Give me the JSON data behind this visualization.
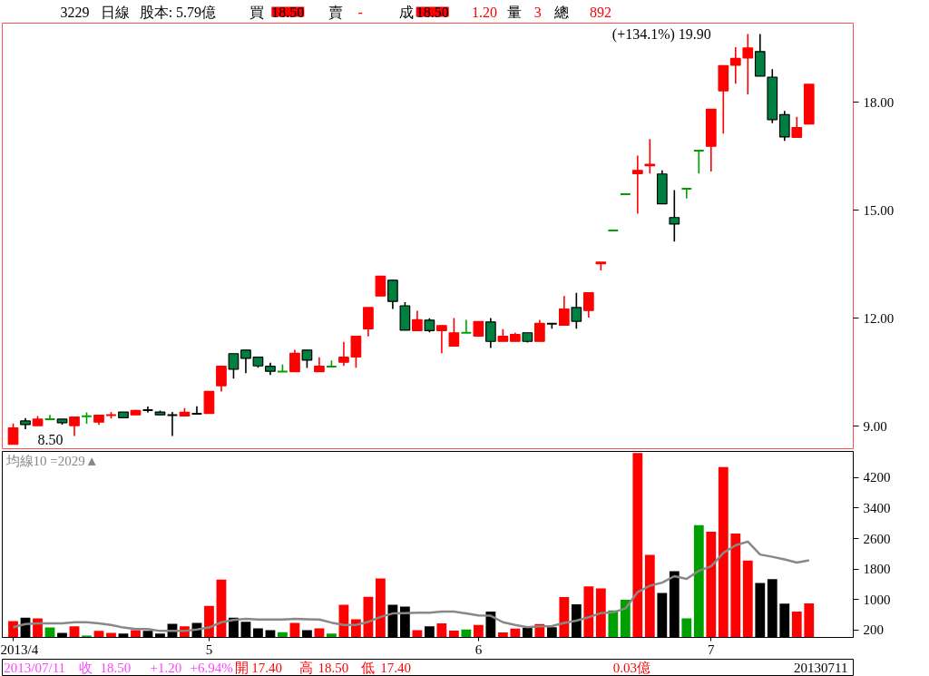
{
  "chart_data": [
    {
      "type": "candlestick",
      "tick_labels": "y",
      "categories": [
        null,
        null,
        null,
        null,
        null,
        null,
        null,
        null,
        null,
        null,
        null,
        null,
        null,
        null,
        null,
        null,
        null,
        null,
        null,
        null,
        null,
        null,
        null,
        null,
        null,
        null,
        null,
        null,
        null,
        null,
        null,
        null,
        null,
        null,
        null,
        null,
        null,
        null,
        null,
        null,
        null,
        null,
        null,
        null,
        null,
        null,
        null,
        null,
        null,
        null,
        null,
        null,
        null,
        null,
        null,
        null,
        null,
        null,
        null,
        null,
        null,
        null,
        null,
        null,
        null,
        null
      ],
      "ohlc": [
        [
          8.5,
          9.08,
          8.5,
          8.96
        ],
        [
          9.15,
          9.23,
          8.92,
          9.05
        ],
        [
          9.02,
          9.29,
          9.02,
          9.2
        ],
        [
          9.2,
          9.32,
          9.2,
          9.2
        ],
        [
          9.2,
          9.2,
          9.05,
          9.1
        ],
        [
          9.02,
          9.26,
          8.73,
          9.26
        ],
        [
          9.28,
          9.39,
          9.07,
          9.28
        ],
        [
          9.12,
          9.31,
          9.04,
          9.31
        ],
        [
          9.31,
          9.4,
          9.22,
          9.31
        ],
        [
          9.4,
          9.4,
          9.24,
          9.24
        ],
        [
          9.32,
          9.46,
          9.32,
          9.44
        ],
        [
          9.45,
          9.55,
          9.38,
          9.45
        ],
        [
          9.4,
          9.44,
          9.32,
          9.32
        ],
        [
          9.31,
          9.4,
          8.73,
          9.31
        ],
        [
          9.29,
          9.51,
          9.29,
          9.39
        ],
        [
          9.35,
          9.56,
          9.35,
          9.35
        ],
        [
          9.36,
          9.97,
          9.36,
          9.97
        ],
        [
          10.13,
          10.67,
          9.97,
          10.67
        ],
        [
          11.02,
          11.02,
          10.33,
          10.59
        ],
        [
          11.12,
          11.12,
          10.48,
          10.89
        ],
        [
          10.92,
          10.92,
          10.63,
          10.68
        ],
        [
          10.67,
          10.77,
          10.43,
          10.53
        ],
        [
          10.52,
          10.72,
          10.52,
          10.52
        ],
        [
          10.52,
          11.13,
          10.52,
          11.03
        ],
        [
          11.12,
          11.12,
          10.62,
          10.84
        ],
        [
          10.52,
          10.92,
          10.52,
          10.67
        ],
        [
          10.66,
          10.83,
          10.66,
          10.66
        ],
        [
          10.78,
          11.35,
          10.68,
          10.92
        ],
        [
          10.93,
          11.5,
          10.63,
          11.5
        ],
        [
          11.71,
          12.3,
          11.5,
          12.3
        ],
        [
          12.62,
          13.17,
          12.62,
          13.17
        ],
        [
          13.06,
          13.06,
          12.26,
          12.47
        ],
        [
          12.35,
          12.45,
          11.67,
          11.67
        ],
        [
          11.66,
          12.21,
          11.66,
          11.96
        ],
        [
          11.95,
          12.0,
          11.61,
          11.66
        ],
        [
          11.66,
          11.8,
          11.03,
          11.8
        ],
        [
          11.23,
          12.01,
          11.23,
          11.6
        ],
        [
          11.6,
          11.96,
          11.6,
          11.6
        ],
        [
          11.51,
          11.91,
          11.51,
          11.91
        ],
        [
          11.9,
          12.01,
          11.18,
          11.36
        ],
        [
          11.36,
          11.7,
          11.36,
          11.5
        ],
        [
          11.36,
          11.6,
          11.36,
          11.55
        ],
        [
          11.6,
          11.6,
          11.33,
          11.36
        ],
        [
          11.36,
          11.96,
          11.36,
          11.86
        ],
        [
          11.85,
          11.86,
          11.71,
          11.85
        ],
        [
          11.81,
          12.62,
          11.81,
          12.26
        ],
        [
          12.3,
          12.71,
          11.71,
          11.92
        ],
        [
          12.22,
          12.71,
          12.02,
          12.71
        ],
        [
          13.52,
          13.56,
          13.33,
          13.56
        ],
        [
          14.44,
          14.44,
          14.44,
          14.44
        ],
        [
          15.45,
          15.45,
          15.45,
          15.45
        ],
        [
          16.02,
          16.52,
          14.91,
          16.11
        ],
        [
          16.24,
          16.98,
          16.02,
          16.28
        ],
        [
          16.01,
          16.11,
          15.18,
          15.18
        ],
        [
          14.8,
          15.56,
          14.13,
          14.62
        ],
        [
          15.6,
          15.6,
          15.33,
          15.6
        ],
        [
          16.66,
          16.66,
          16.02,
          16.66
        ],
        [
          16.78,
          17.81,
          16.08,
          17.81
        ],
        [
          18.32,
          19.02,
          17.13,
          19.02
        ],
        [
          19.03,
          19.53,
          18.52,
          19.22
        ],
        [
          19.23,
          19.9,
          18.22,
          19.51
        ],
        [
          19.41,
          19.9,
          18.73,
          18.73
        ],
        [
          18.7,
          18.92,
          17.42,
          17.52
        ],
        [
          17.66,
          17.76,
          16.93,
          17.04
        ],
        [
          17.03,
          17.6,
          17.03,
          17.3
        ],
        [
          17.4,
          18.5,
          17.4,
          18.5
        ]
      ],
      "colors": [
        "#ff0000",
        "#008040",
        "#ff0000",
        "#00a000",
        "#008040",
        "#ff0000",
        "#00a000",
        "#ff0000",
        "#ff0000",
        "#008040",
        "#ff0000",
        "#000000",
        "#008040",
        "#000000",
        "#ff0000",
        "#000000",
        "#ff0000",
        "#ff0000",
        "#008040",
        "#008040",
        "#008040",
        "#008040",
        "#00a000",
        "#ff0000",
        "#008040",
        "#ff0000",
        "#00a000",
        "#ff0000",
        "#ff0000",
        "#ff0000",
        "#ff0000",
        "#008040",
        "#008040",
        "#ff0000",
        "#008040",
        "#ff0000",
        "#ff0000",
        "#00a000",
        "#ff0000",
        "#008040",
        "#ff0000",
        "#ff0000",
        "#008040",
        "#ff0000",
        "#000000",
        "#ff0000",
        "#008040",
        "#ff0000",
        "#ff0000",
        "#00a000",
        "#00a000",
        "#ff0000",
        "#ff0000",
        "#008040",
        "#008040",
        "#00a000",
        "#00a000",
        "#ff0000",
        "#ff0000",
        "#ff0000",
        "#ff0000",
        "#008040",
        "#008040",
        "#008040",
        "#ff0000",
        "#ff0000"
      ],
      "ylim": [
        8.38,
        20.2
      ],
      "yticks": [
        {
          "value": 9,
          "label": "9.00"
        },
        {
          "value": 12,
          "label": "12.00"
        },
        {
          "value": 15,
          "label": "15.00"
        },
        {
          "value": 18,
          "label": "18.00"
        }
      ],
      "annotations": [
        "(+134.1%) 19.90",
        "8.50",
        "3229",
        "日線",
        "股本: 5.79億",
        "買",
        "18.50",
        "賣",
        "-",
        "成",
        "18.50",
        "1.20",
        "量",
        "3",
        "總",
        "892"
      ]
    },
    {
      "type": "bar",
      "categories": [
        "2013/4",
        null,
        null,
        null,
        null,
        null,
        null,
        null,
        null,
        null,
        null,
        null,
        null,
        null,
        null,
        null,
        "5",
        null,
        null,
        null,
        null,
        null,
        null,
        null,
        null,
        null,
        null,
        null,
        null,
        null,
        null,
        null,
        null,
        null,
        null,
        null,
        null,
        null,
        "6",
        null,
        null,
        null,
        null,
        null,
        null,
        null,
        null,
        null,
        null,
        null,
        null,
        null,
        null,
        null,
        null,
        null,
        null,
        "7",
        null,
        null,
        null,
        null,
        null,
        null,
        null,
        null
      ],
      "series": [
        {
          "type": "bar",
          "values": [
            430,
            520,
            500,
            260,
            120,
            290,
            50,
            170,
            120,
            100,
            190,
            170,
            100,
            360,
            290,
            380,
            830,
            1520,
            520,
            410,
            240,
            190,
            140,
            380,
            190,
            240,
            100,
            860,
            480,
            1070,
            1550,
            860,
            810,
            190,
            290,
            370,
            180,
            210,
            330,
            680,
            130,
            230,
            250,
            350,
            270,
            1060,
            870,
            1340,
            1290,
            710,
            990,
            4850,
            2170,
            1170,
            1740,
            500,
            2950,
            2780,
            4480,
            2730,
            2020,
            1430,
            1530,
            890,
            680,
            892
          ],
          "colors": [
            "#ff0000",
            "#000000",
            "#ff0000",
            "#00a000",
            "#000000",
            "#ff0000",
            "#00a000",
            "#ff0000",
            "#ff0000",
            "#000000",
            "#ff0000",
            "#000000",
            "#000000",
            "#000000",
            "#ff0000",
            "#000000",
            "#ff0000",
            "#ff0000",
            "#000000",
            "#000000",
            "#000000",
            "#000000",
            "#00a000",
            "#ff0000",
            "#000000",
            "#ff0000",
            "#00a000",
            "#ff0000",
            "#ff0000",
            "#ff0000",
            "#ff0000",
            "#000000",
            "#000000",
            "#ff0000",
            "#000000",
            "#ff0000",
            "#ff0000",
            "#00a000",
            "#ff0000",
            "#000000",
            "#ff0000",
            "#ff0000",
            "#000000",
            "#ff0000",
            "#000000",
            "#ff0000",
            "#000000",
            "#ff0000",
            "#ff0000",
            "#00a000",
            "#00a000",
            "#ff0000",
            "#ff0000",
            "#000000",
            "#000000",
            "#00a000",
            "#00a000",
            "#ff0000",
            "#ff0000",
            "#ff0000",
            "#ff0000",
            "#000000",
            "#000000",
            "#000000",
            "#ff0000",
            "#ff0000"
          ]
        },
        {
          "type": "line",
          "name": "均線10 =2029▲",
          "color": "#888888",
          "values": [
            270,
            350,
            370,
            370,
            370,
            400,
            400,
            370,
            330,
            260,
            220,
            220,
            170,
            170,
            170,
            210,
            260,
            400,
            460,
            490,
            470,
            470,
            470,
            490,
            480,
            470,
            390,
            330,
            330,
            410,
            540,
            630,
            640,
            650,
            650,
            680,
            680,
            630,
            580,
            570,
            400,
            330,
            270,
            290,
            300,
            380,
            440,
            530,
            640,
            660,
            760,
            1190,
            1360,
            1440,
            1610,
            1540,
            1750,
            1870,
            2220,
            2420,
            2520,
            2180,
            2120,
            2050,
            1970,
            2029
          ]
        }
      ],
      "ylim": [
        0,
        4890
      ],
      "yticks": [
        200,
        1000,
        1800,
        2600,
        3400,
        4200
      ],
      "annotations": [
        "20130711",
        "2013/07/11",
        "收",
        "18.50",
        "+1.20",
        "+6.94%",
        "開",
        "17.40",
        "高",
        "18.50",
        "低",
        "17.40",
        "0.03億"
      ]
    }
  ]
}
